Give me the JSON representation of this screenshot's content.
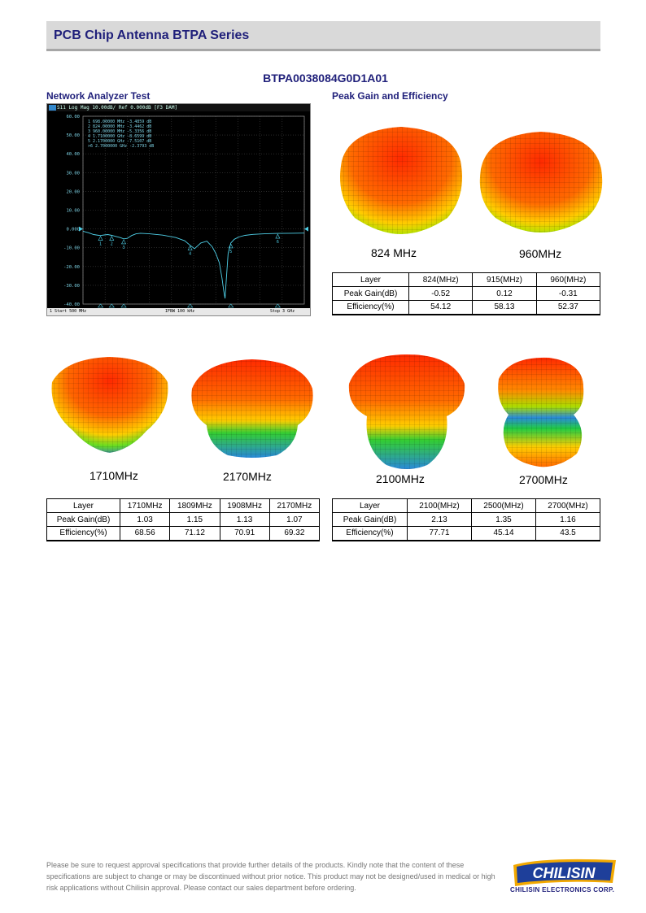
{
  "header": {
    "title": "PCB Chip Antenna BTPA Series"
  },
  "part_number": "BTPA0038084G0D1A01",
  "sections": {
    "network_analyzer": "Network Analyzer Test",
    "peak_gain": "Peak Gain and Efficiency"
  },
  "network_analyzer": {
    "header_text": "S11 Log Mag 10.00dB/ Ref 0.000dB [F3 DAM]",
    "marker_lines": [
      "1   698.00000 MHz  -3.4859 dB",
      "2   824.00000 MHz  -3.4462 dB",
      "3   960.00000 MHz  -5.3356 dB",
      "4  1.7100000 GHz  -8.6599 dB",
      "5  2.1700000 GHz  -7.5107 dB",
      ">6 2.7000000 GHz  -2.3793 dB"
    ],
    "y_ticks": [
      "60.00",
      "50.00",
      "40.00",
      "30.00",
      "20.00",
      "10.00",
      "0.000",
      "-10.00",
      "-20.00",
      "-30.00",
      "-40.00"
    ],
    "footer_start": "1  Start 500 MHz",
    "footer_ifbw": "IFBW 100 kHz",
    "footer_stop": "Stop 3 GHz",
    "chart_data": {
      "type": "line",
      "xlabel": "",
      "ylabel": "",
      "xlim": [
        500,
        3000
      ],
      "ylim": [
        -40,
        60
      ],
      "x": [
        500,
        560,
        620,
        680,
        698,
        740,
        780,
        824,
        870,
        920,
        960,
        1000,
        1050,
        1100,
        1150,
        1250,
        1400,
        1550,
        1650,
        1710,
        1760,
        1830,
        1900,
        1960,
        2000,
        2040,
        2070,
        2090,
        2105,
        2120,
        2140,
        2170,
        2210,
        2260,
        2330,
        2420,
        2550,
        2700,
        2850,
        3000
      ],
      "y": [
        -1.2,
        -2.0,
        -3.0,
        -3.4,
        -3.5,
        -3.2,
        -3.0,
        -3.4,
        -4.0,
        -4.6,
        -5.3,
        -5.0,
        -3.5,
        -2.6,
        -2.3,
        -2.6,
        -3.3,
        -4.6,
        -6.3,
        -8.7,
        -10.5,
        -7.5,
        -6.5,
        -9.5,
        -13.0,
        -18.0,
        -26.0,
        -33.0,
        -37.0,
        -26.0,
        -13.0,
        -7.5,
        -5.5,
        -4.3,
        -3.4,
        -2.9,
        -2.6,
        -2.4,
        -2.3,
        -2.2
      ],
      "markers": [
        {
          "id": "1",
          "x": 698,
          "y": -3.4859
        },
        {
          "id": "2",
          "x": 824,
          "y": -3.4462
        },
        {
          "id": "3",
          "x": 960,
          "y": -5.3356
        },
        {
          "id": "4",
          "x": 1710,
          "y": -8.6599
        },
        {
          "id": "5",
          "x": 2170,
          "y": -7.5107
        },
        {
          "id": "6",
          "x": 2700,
          "y": -2.3793
        }
      ]
    }
  },
  "patterns_low": [
    {
      "label": "824 MHz"
    },
    {
      "label": "960MHz"
    }
  ],
  "patterns_mid": [
    {
      "label": "1710MHz"
    },
    {
      "label": "2170MHz"
    }
  ],
  "patterns_high": [
    {
      "label": "2100MHz"
    },
    {
      "label": "2700MHz"
    }
  ],
  "table_low": {
    "headers": [
      "Layer",
      "824(MHz)",
      "915(MHz)",
      "960(MHz)"
    ],
    "gain": [
      "Peak Gain(dB)",
      "-0.52",
      "0.12",
      "-0.31"
    ],
    "eff": [
      "Efficiency(%)",
      "54.12",
      "58.13",
      "52.37"
    ]
  },
  "table_mid": {
    "headers": [
      "Layer",
      "1710MHz",
      "1809MHz",
      "1908MHz",
      "2170MHz"
    ],
    "gain": [
      "Peak Gain(dB)",
      "1.03",
      "1.15",
      "1.13",
      "1.07"
    ],
    "eff": [
      "Efficiency(%)",
      "68.56",
      "71.12",
      "70.91",
      "69.32"
    ]
  },
  "table_high": {
    "headers": [
      "Layer",
      "2100(MHz)",
      "2500(MHz)",
      "2700(MHz)"
    ],
    "gain": [
      "Peak Gain(dB)",
      "2.13",
      "1.35",
      "1.16"
    ],
    "eff": [
      "Efficiency(%)",
      "77.71",
      "45.14",
      "43.5"
    ]
  },
  "footer": {
    "disclaimer": "Please be sure to request approval specifications that provide further details of the products. Kindly note that the content of these specifications are subject to change or may be discontinued without prior notice. This product may not be designed/used in medical or high risk applications without Chilisin approval. Please contact our sales department before ordering.",
    "logo_text": "CHILISIN",
    "company": "CHILISIN ELECTRONICS CORP."
  },
  "colors": {
    "title_blue": "#1f1f7a",
    "trace": "#4fd0e8",
    "logo_blue": "#1e3f9a"
  }
}
